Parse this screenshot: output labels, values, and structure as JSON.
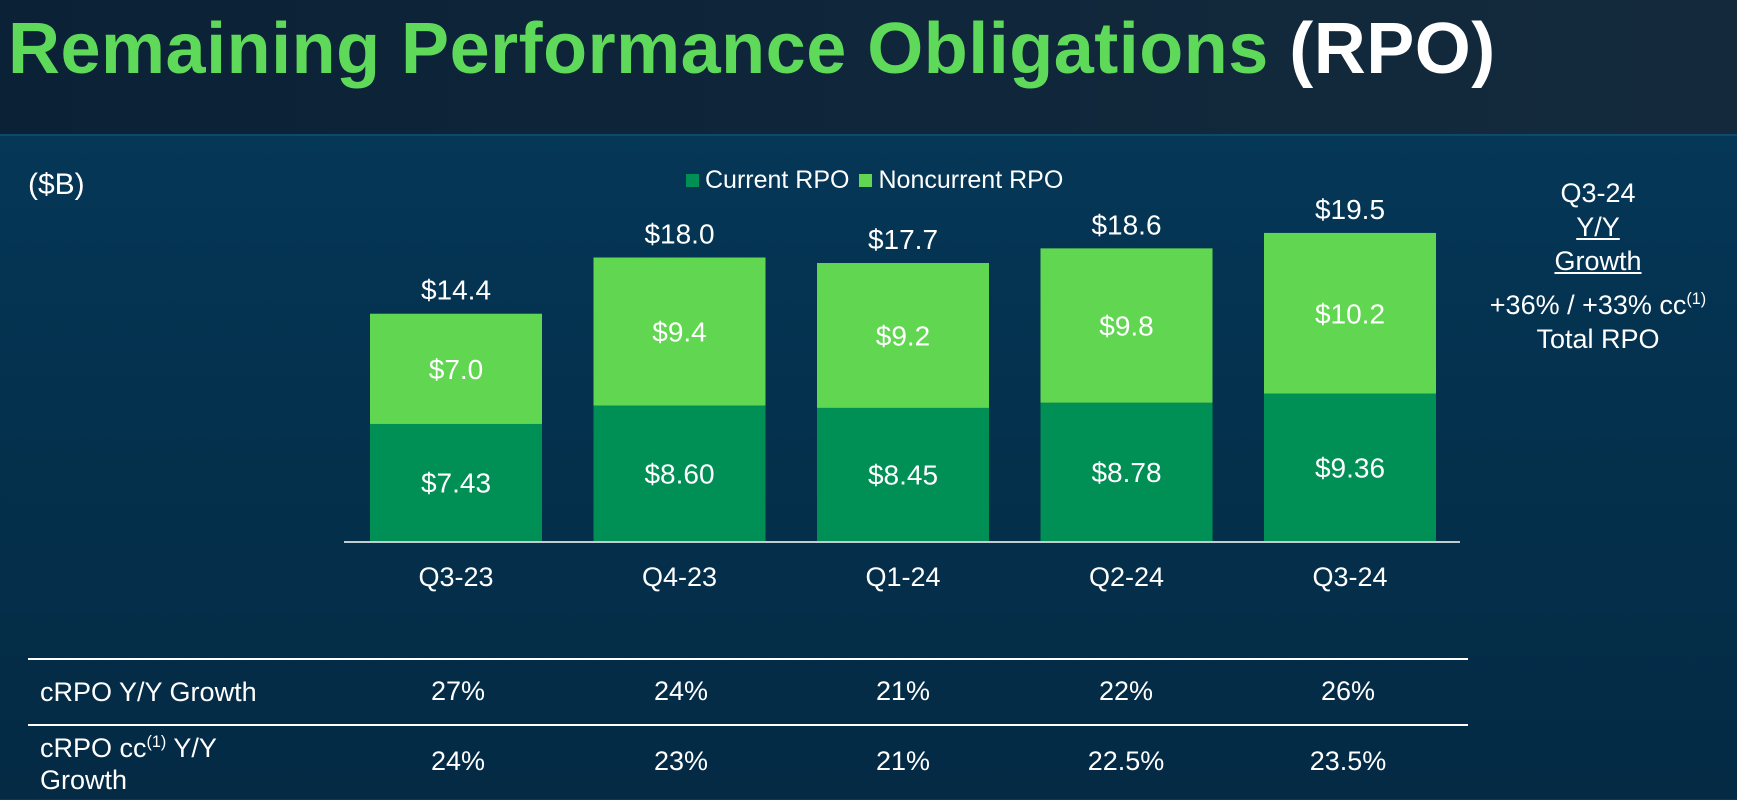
{
  "title": {
    "green_part": "Remaining Performance Obligations",
    "white_part": "(RPO)"
  },
  "unit_label": "($B)",
  "legend": [
    {
      "label": "Current RPO",
      "color": "#008f54"
    },
    {
      "label": "Noncurrent RPO",
      "color": "#61d651"
    }
  ],
  "growth_box": {
    "period": "Q3-24",
    "line1": "Y/Y",
    "line2": "Growth",
    "value_main": "+36% / +33% cc",
    "value_sup": "(1)",
    "caption": "Total RPO"
  },
  "chart_data": {
    "type": "bar",
    "stacked": true,
    "categories": [
      "Q3-23",
      "Q4-23",
      "Q1-24",
      "Q2-24",
      "Q3-24"
    ],
    "series": [
      {
        "name": "Current RPO",
        "values": [
          7.43,
          8.6,
          8.45,
          8.78,
          9.36
        ],
        "labels": [
          "$7.43",
          "$8.60",
          "$8.45",
          "$8.78",
          "$9.36"
        ],
        "color": "#008f54"
      },
      {
        "name": "Noncurrent RPO",
        "values": [
          7.0,
          9.4,
          9.2,
          9.8,
          10.2
        ],
        "labels": [
          "$7.0",
          "$9.4",
          "$9.2",
          "$9.8",
          "$10.2"
        ],
        "color": "#61d651"
      }
    ],
    "totals": [
      14.4,
      18.0,
      17.7,
      18.6,
      19.5
    ],
    "total_labels": [
      "$14.4",
      "$18.0",
      "$17.7",
      "$18.6",
      "$19.5"
    ],
    "ylim": [
      0,
      20
    ],
    "grid": false
  },
  "table": {
    "rows": [
      {
        "label": "cRPO Y/Y Growth",
        "label_sup": "",
        "label_rest": "",
        "values": [
          "27%",
          "24%",
          "21%",
          "22%",
          "26%"
        ]
      },
      {
        "label": "cRPO cc",
        "label_sup": "(1)",
        "label_rest": " Y/Y Growth",
        "values": [
          "24%",
          "23%",
          "21%",
          "22.5%",
          "23.5%"
        ]
      }
    ]
  }
}
